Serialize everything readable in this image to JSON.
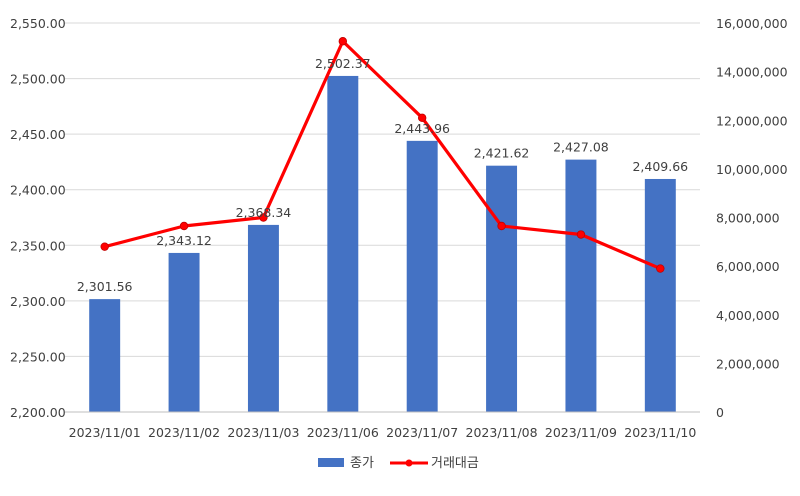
{
  "chart_data": {
    "type": "bar",
    "categories": [
      "2023/11/01",
      "2023/11/02",
      "2023/11/03",
      "2023/11/06",
      "2023/11/07",
      "2023/11/08",
      "2023/11/09",
      "2023/11/10"
    ],
    "series": [
      {
        "name": "종가",
        "type": "bar",
        "axis": "left",
        "color": "#4472C4",
        "values": [
          2301.56,
          2343.12,
          2368.34,
          2502.37,
          2443.96,
          2421.62,
          2427.08,
          2409.66
        ],
        "labels": [
          "2,301.56",
          "2,343.12",
          "2,368.34",
          "2,502.37",
          "2,443.96",
          "2,421.62",
          "2,427.08",
          "2,409.66"
        ]
      },
      {
        "name": "거래대금",
        "type": "line",
        "axis": "right",
        "color": "#FF0000",
        "values": [
          6800000,
          7650000,
          8000000,
          15250000,
          12100000,
          7650000,
          7300000,
          5900000
        ]
      }
    ],
    "y_left": {
      "range": [
        2200,
        2550
      ],
      "ticks": [
        2200,
        2250,
        2300,
        2350,
        2400,
        2450,
        2500,
        2550
      ],
      "tick_labels": [
        "2,200.00",
        "2,250.00",
        "2,300.00",
        "2,350.00",
        "2,400.00",
        "2,450.00",
        "2,500.00",
        "2,550.00"
      ]
    },
    "y_right": {
      "range": [
        0,
        16000000
      ],
      "ticks": [
        0,
        2000000,
        4000000,
        6000000,
        8000000,
        10000000,
        12000000,
        14000000,
        16000000
      ],
      "tick_labels": [
        "0",
        "2,000,000",
        "4,000,000",
        "6,000,000",
        "8,000,000",
        "10,000,000",
        "12,000,000",
        "14,000,000",
        "16,000,000"
      ]
    },
    "grid": true,
    "legend": {
      "position": "bottom",
      "items": [
        "종가",
        "거래대금"
      ]
    }
  }
}
